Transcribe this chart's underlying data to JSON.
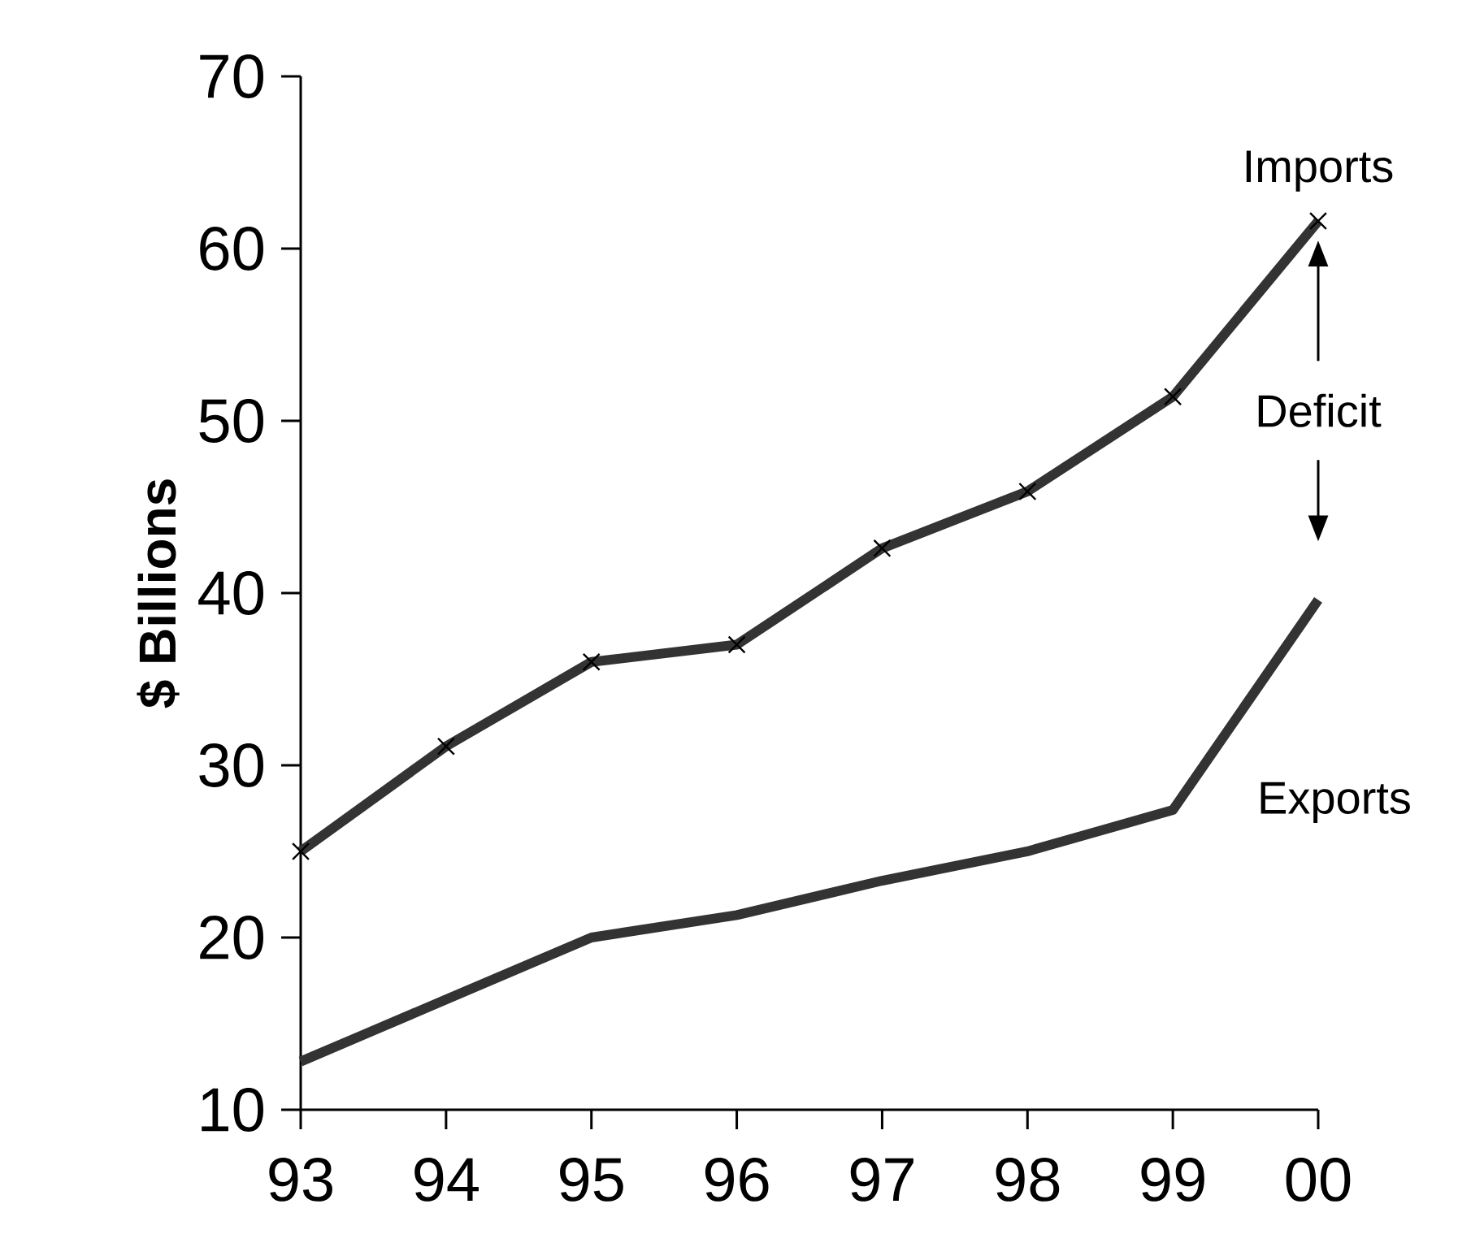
{
  "chart_data": {
    "type": "line",
    "ylabel": "$ Billions",
    "categories": [
      "93",
      "94",
      "95",
      "96",
      "97",
      "98",
      "99",
      "00"
    ],
    "series": [
      {
        "name": "Imports",
        "color": "#333333",
        "marker": "cross",
        "values": [
          25,
          31.1,
          36,
          37,
          42.6,
          45.9,
          51.4,
          61.6
        ]
      },
      {
        "name": "Exports",
        "color": "#333333",
        "marker": "none",
        "values": [
          12.8,
          16.4,
          20,
          21.3,
          23.3,
          25,
          27.4,
          39.6
        ]
      }
    ],
    "annotations": [
      "Deficit"
    ],
    "ylim": [
      10,
      70
    ],
    "yticks": [
      10,
      20,
      30,
      40,
      50,
      60,
      70
    ],
    "grid": false,
    "legend": false,
    "line_style": "solid"
  }
}
